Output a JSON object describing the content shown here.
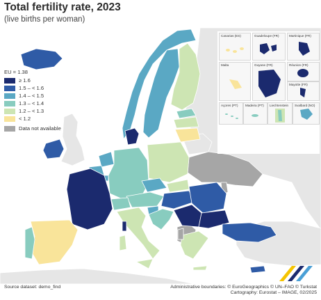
{
  "title": "Total fertility rate, 2023",
  "subtitle": "(live births per woman)",
  "legend": {
    "title": "EU = 1.38",
    "items": [
      {
        "label": "≥ 1.6",
        "color": "#1b2a6e"
      },
      {
        "label": "1.5 – < 1.6",
        "color": "#2f5ba6"
      },
      {
        "label": "1.4 – < 1.5",
        "color": "#5aa8c4"
      },
      {
        "label": "1.3 – < 1.4",
        "color": "#88ccbf"
      },
      {
        "label": "1.2 – < 1.3",
        "color": "#cde5b3"
      },
      {
        "label": "< 1.2",
        "color": "#f9e49a"
      },
      {
        "label": "Data not available",
        "color": "#a6a6a6"
      }
    ]
  },
  "insets": [
    {
      "label": "Canarias (ES)"
    },
    {
      "label": "Guadeloupe (FR)"
    },
    {
      "label": "Martinique (FR)"
    },
    {
      "label": "Malta"
    },
    {
      "label": "Guyane (FR)"
    },
    {
      "label": "Réunion (FR)"
    },
    {
      "label": "Mayotte (FR)"
    },
    {
      "label": "Açores (PT)"
    },
    {
      "label": "Madeira (PT)"
    },
    {
      "label": "Liechtenstein"
    },
    {
      "label": "Svalbard (NO)"
    }
  ],
  "footer": {
    "source": "Source dataset: demo_find",
    "boundaries": "Administrative boundaries: © EuroGeographics © UN–FAO © Turkstat",
    "cartography": "Cartography: Eurostat – IMAGE, 02/2025"
  },
  "colors": {
    "sea": "#ffffff",
    "non_eu_land": "#e6e6e6",
    "border": "#ffffff"
  }
}
